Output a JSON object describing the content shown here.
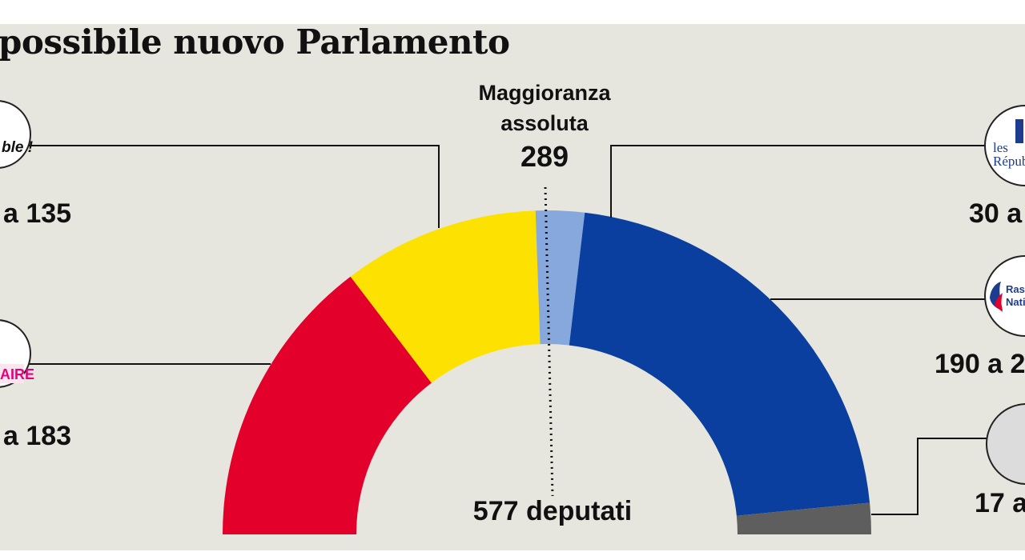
{
  "title": "possibile nuovo Parlamento",
  "majority": {
    "label_line1": "Maggioranza",
    "label_line2": "assoluta",
    "value": "289"
  },
  "total": {
    "label": "577 deputati",
    "seats": 577
  },
  "logos": {
    "top_left": "ble !",
    "mid_left": "AIRE",
    "top_right_1": "les",
    "top_right_2": "Répub",
    "mid_right_1": "Rass",
    "mid_right_2": "Natio"
  },
  "colors": {
    "red": "#e3002b",
    "yellow": "#fde100",
    "light_blue": "#87a8dc",
    "blue": "#0a3fa0",
    "gray": "#5e5e5e",
    "panel": "#e7e6de"
  },
  "chart_data": {
    "type": "hemicycle",
    "title": "possibile nuovo Parlamento",
    "total_seats": 577,
    "majority": 289,
    "segment_colors": [
      "#e3002b",
      "#fde100",
      "#87a8dc",
      "#0a3fa0",
      "#5e5e5e"
    ],
    "segment_seats": [
      169,
      113,
      28,
      249,
      18
    ],
    "range_labels": [
      {
        "text": "a 183"
      },
      {
        "text": "a 135"
      },
      {
        "text": "30 a"
      },
      {
        "text": "190 a 2"
      },
      {
        "text": "17 a"
      }
    ]
  }
}
